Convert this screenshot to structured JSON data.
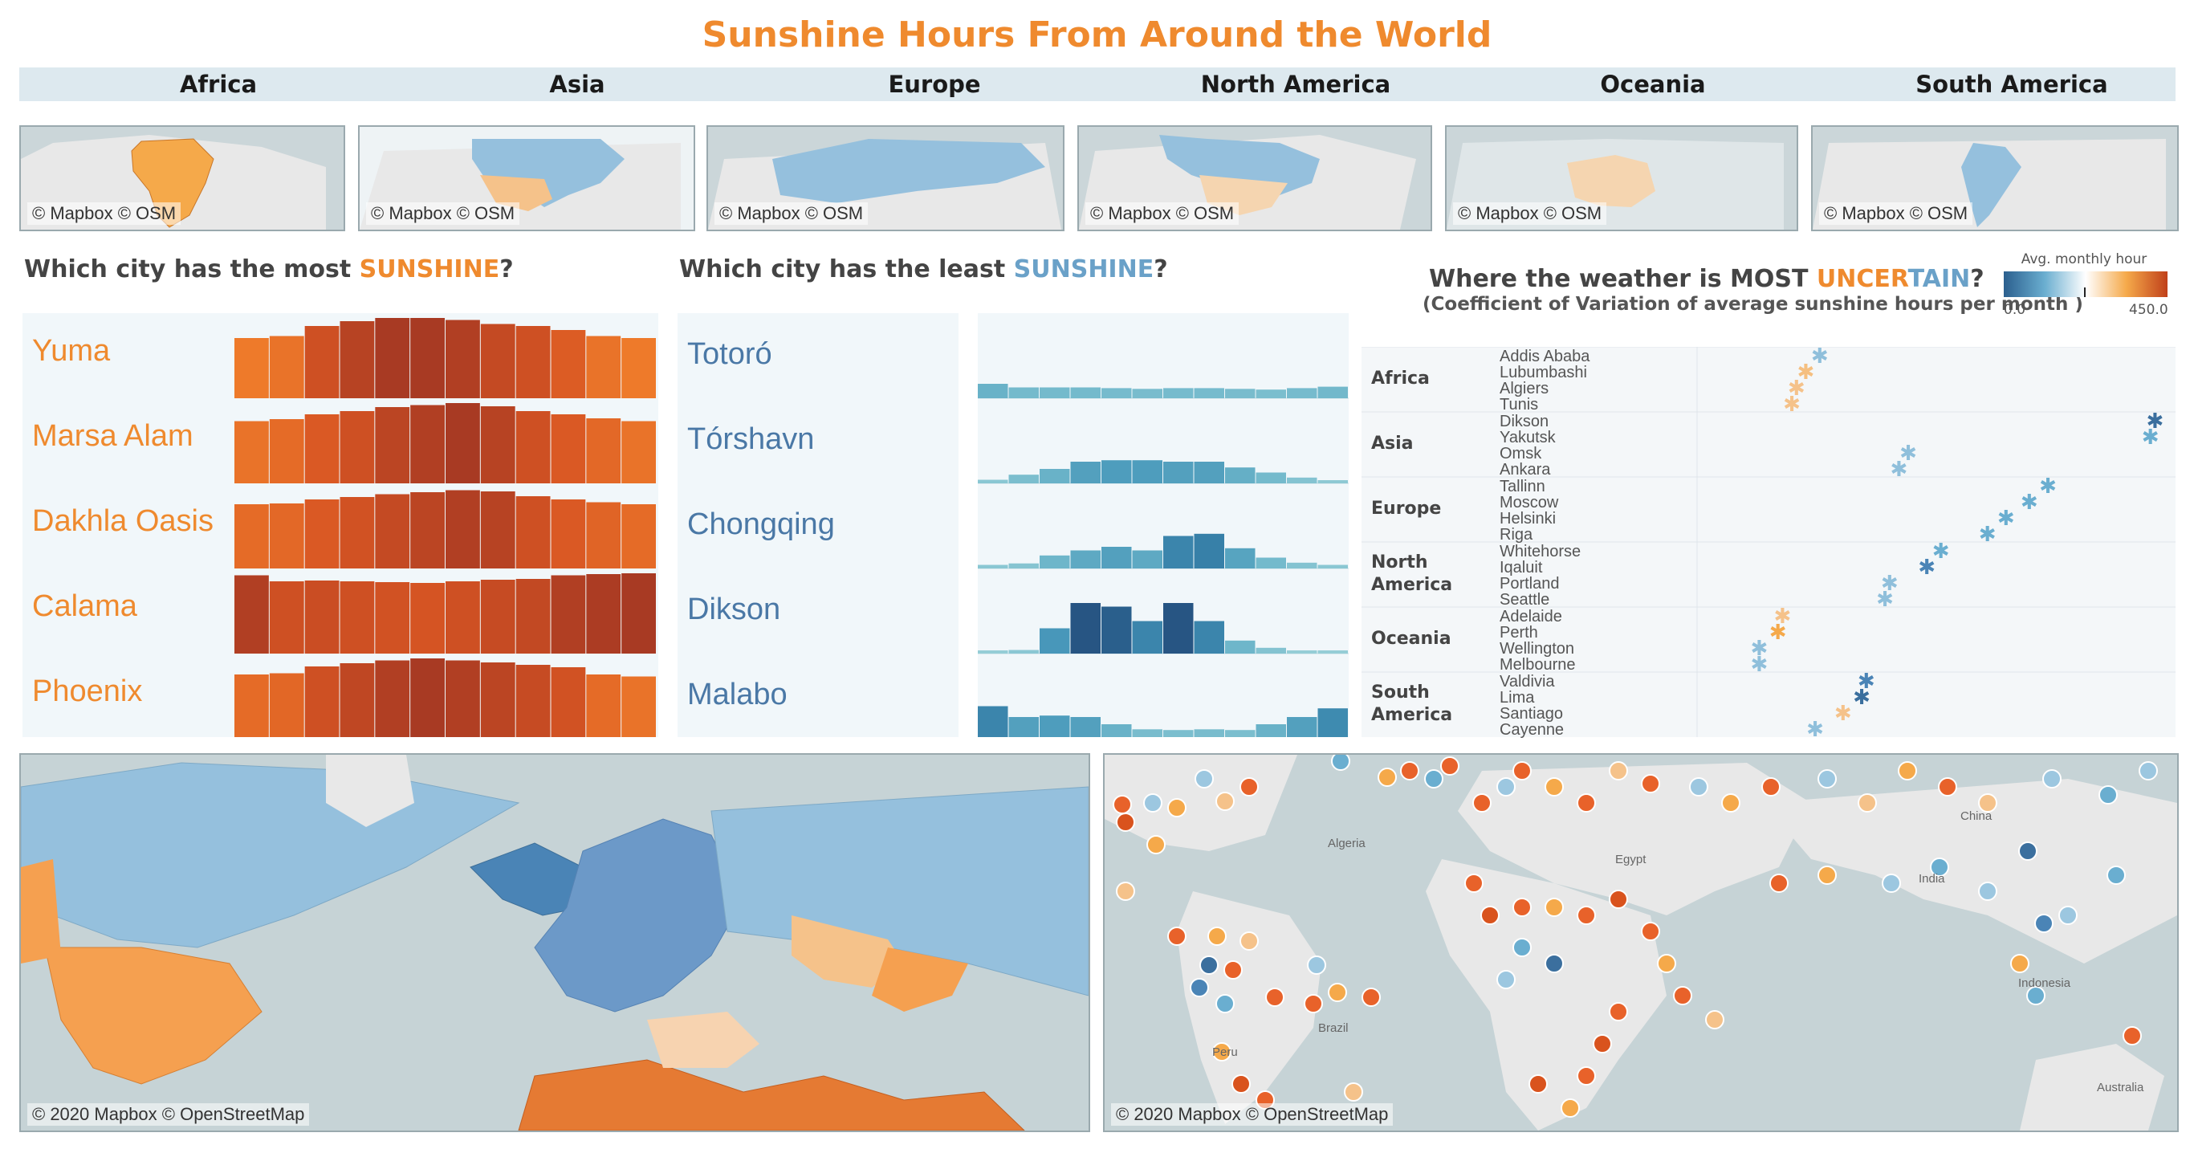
{
  "title": "Sunshine Hours From Around the World",
  "tabs": [
    "Africa",
    "Asia",
    "Europe",
    "North America",
    "Oceania",
    "South America"
  ],
  "map_attribution_small": "© Mapbox © OSM",
  "map_attribution_large": "© 2020 Mapbox © OpenStreetMap",
  "most": {
    "q_pre": "Which city has the most ",
    "q_hl": "SUNSHINE",
    "q_post": "?",
    "cities": [
      {
        "name": "Yuma",
        "color": "#ef8a2e",
        "levels": [
          0.5,
          0.55,
          0.8,
          0.92,
          1.0,
          1.0,
          0.95,
          0.85,
          0.8,
          0.7,
          0.55,
          0.5
        ]
      },
      {
        "name": "Marsa Alam",
        "color": "#ef8a2e",
        "levels": [
          0.55,
          0.6,
          0.72,
          0.8,
          0.9,
          0.95,
          1.0,
          0.92,
          0.8,
          0.72,
          0.62,
          0.55
        ]
      },
      {
        "name": "Dakhla Oasis",
        "color": "#ef8a2e",
        "levels": [
          0.6,
          0.62,
          0.72,
          0.78,
          0.85,
          0.9,
          0.95,
          0.92,
          0.8,
          0.72,
          0.65,
          0.6
        ]
      },
      {
        "name": "Calama",
        "color": "#ef8a2e",
        "levels": [
          0.95,
          0.8,
          0.82,
          0.8,
          0.78,
          0.76,
          0.8,
          0.84,
          0.86,
          0.95,
          0.98,
          1.0
        ]
      },
      {
        "name": "Phoenix",
        "color": "#ef8a2e",
        "levels": [
          0.6,
          0.63,
          0.8,
          0.88,
          0.95,
          1.0,
          0.95,
          0.9,
          0.84,
          0.78,
          0.6,
          0.55
        ]
      }
    ]
  },
  "least": {
    "q_pre": "Which city has the least ",
    "q_hl": "SUNSHINE",
    "q_post": "?",
    "cities": [
      {
        "name": "Totoró",
        "color": "#4a78a6",
        "levels": [
          0.2,
          0.15,
          0.15,
          0.15,
          0.14,
          0.13,
          0.14,
          0.14,
          0.13,
          0.12,
          0.14,
          0.16
        ]
      },
      {
        "name": "Tórshavn",
        "color": "#4a78a6",
        "levels": [
          0.05,
          0.12,
          0.2,
          0.3,
          0.32,
          0.32,
          0.3,
          0.3,
          0.22,
          0.15,
          0.08,
          0.03
        ]
      },
      {
        "name": "Chongqing",
        "color": "#4a78a6",
        "levels": [
          0.05,
          0.07,
          0.18,
          0.25,
          0.3,
          0.25,
          0.45,
          0.48,
          0.28,
          0.15,
          0.08,
          0.05
        ]
      },
      {
        "name": "Dikson",
        "color": "#4a78a6",
        "levels": [
          0.0,
          0.05,
          0.35,
          0.7,
          0.65,
          0.45,
          0.7,
          0.45,
          0.18,
          0.08,
          0.0,
          0.0
        ]
      },
      {
        "name": "Malabo",
        "color": "#4a78a6",
        "levels": [
          0.45,
          0.3,
          0.32,
          0.3,
          0.2,
          0.13,
          0.12,
          0.13,
          0.12,
          0.2,
          0.3,
          0.42
        ]
      }
    ]
  },
  "uncertain": {
    "q_pre": "Where the weather is ",
    "q_mid": "MOST ",
    "q_hl1": "UNCER",
    "q_hl2": "TAIN",
    "q_post": "?",
    "subtitle": "(Coefficient of Variation of average sunshine hours per month )",
    "legend": {
      "title": "Avg. monthly hour",
      "min": "0.0",
      "max": "450.0"
    },
    "regions": [
      {
        "name": "Africa",
        "cities": [
          "Addis Ababa",
          "Lubumbashi",
          "Algiers",
          "Tunis"
        ],
        "cv": [
          0.26,
          0.23,
          0.21,
          0.2
        ],
        "colors": [
          "#8fbfdb",
          "#f5bf80",
          "#f5c28a",
          "#f5c28a"
        ]
      },
      {
        "name": "Asia",
        "cities": [
          "Dikson",
          "Yakutsk",
          "Omsk",
          "Ankara"
        ],
        "cv": [
          0.98,
          0.97,
          0.45,
          0.43
        ],
        "colors": [
          "#3b6f9e",
          "#6aaed0",
          "#8fbfdb",
          "#8fbfdb"
        ]
      },
      {
        "name": "Europe",
        "cities": [
          "Tallinn",
          "Moscow",
          "Helsinki",
          "Riga"
        ],
        "cv": [
          0.75,
          0.71,
          0.66,
          0.62
        ],
        "colors": [
          "#6aaed0",
          "#6aaed0",
          "#6aaed0",
          "#6aaed0"
        ]
      },
      {
        "name": "North America",
        "cities": [
          "Whitehorse",
          "Iqaluit",
          "Portland",
          "Seattle"
        ],
        "cv": [
          0.52,
          0.49,
          0.41,
          0.4
        ],
        "colors": [
          "#6aaed0",
          "#4a84b6",
          "#8fbfdb",
          "#8fbfdb"
        ]
      },
      {
        "name": "Oceania",
        "cities": [
          "Adelaide",
          "Perth",
          "Wellington",
          "Melbourne"
        ],
        "cv": [
          0.18,
          0.17,
          0.13,
          0.13
        ],
        "colors": [
          "#f5c28a",
          "#f5a94a",
          "#8fbfdb",
          "#8fbfdb"
        ]
      },
      {
        "name": "South America",
        "cities": [
          "Valdivia",
          "Lima",
          "Santiago",
          "Cayenne"
        ],
        "cv": [
          0.36,
          0.35,
          0.31,
          0.25
        ],
        "colors": [
          "#4a84b6",
          "#3b6f9e",
          "#f5c28a",
          "#8fbfdb"
        ]
      }
    ]
  },
  "map_labels": [
    "Algeria",
    "Egypt",
    "India",
    "China",
    "Indonesia",
    "Australia",
    "Brazil",
    "Peru"
  ]
}
